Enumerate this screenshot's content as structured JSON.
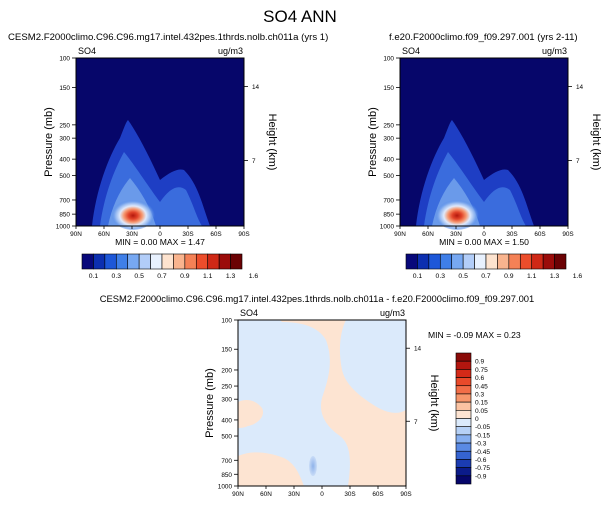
{
  "figure": {
    "title": "SO4 ANN",
    "top_left_case": "CESM2.F2000climo.C96.C96.mg17.intel.432pes.1thrds.nolb.ch011a (yrs 1)",
    "top_right_case": "f.e20.F2000climo.f09_f09.297.001 (yrs 2-11)",
    "diff_title": "CESM2.F2000climo.C96.C96.mg17.intel.432pes.1thrds.nolb.ch011a - f.e20.F2000climo.f09_f09.297.001"
  },
  "panels": {
    "left": {
      "var": "SO4",
      "units": "ug/m3",
      "stats": "MIN =  0.00  MAX =  1.47"
    },
    "right": {
      "var": "SO4",
      "units": "ug/m3",
      "stats": "MIN =  0.00  MAX =  1.50"
    },
    "diff": {
      "var": "SO4",
      "units": "ug/m3",
      "stats": "MIN = -0.09  MAX =  0.23"
    }
  },
  "axes": {
    "ylabel": "Pressure (mb)",
    "y2label": "Height (km)",
    "pressure_ticks": [
      "100",
      "150",
      "200",
      "250",
      "300",
      "400",
      "500",
      "700",
      "850",
      "1000"
    ],
    "pressure_ticks_top": [
      "100",
      "150",
      "250",
      "300",
      "400",
      "500",
      "700",
      "850",
      "1000"
    ],
    "pressure_ticks_diff": [
      "100",
      "150",
      "200",
      "250",
      "300",
      "400",
      "500",
      "700",
      "850",
      "1000"
    ],
    "height_ticks": [
      "14",
      "7"
    ],
    "lat_ticks": [
      "90N",
      "60N",
      "30N",
      "0",
      "30S",
      "60S",
      "90S"
    ]
  },
  "colorbars": {
    "top_labels": [
      "0.1",
      "0.3",
      "0.5",
      "0.7",
      "0.9",
      "1.1",
      "1.3",
      "1.6"
    ],
    "top_colors": [
      "#08087a",
      "#0c2fb0",
      "#1d57d8",
      "#3f7fe8",
      "#77a8f2",
      "#b2cdf8",
      "#e8f1fe",
      "#fde3cf",
      "#f9b48e",
      "#f48156",
      "#ec4d2b",
      "#cf2816",
      "#9b0c0a",
      "#6b0204"
    ],
    "diff_labels": [
      "0.9",
      "0.75",
      "0.6",
      "0.45",
      "0.3",
      "0.15",
      "0.05",
      "0",
      "-0.05",
      "-0.15",
      "-0.3",
      "-0.45",
      "-0.6",
      "-0.75",
      "-0.9"
    ],
    "diff_colors": [
      "#8a0a08",
      "#b3160f",
      "#d42a18",
      "#e94a2a",
      "#f26e48",
      "#f7976c",
      "#fbc3a2",
      "#fde4d2",
      "#dbeafb",
      "#b6d1f6",
      "#86aff0",
      "#5a8ae4",
      "#3563d1",
      "#1b3cb2",
      "#0b1b8a",
      "#06066a"
    ]
  },
  "chart_data": [
    {
      "type": "heatmap",
      "title": "CESM2.F2000climo.C96.C96.mg17.intel.432pes.1thrds.nolb.ch011a (yrs 1)",
      "x": [
        "90N",
        "60N",
        "30N",
        "0",
        "30S",
        "60S",
        "90S"
      ],
      "y": [
        1000,
        850,
        700,
        500,
        400,
        300,
        250,
        200,
        150,
        100
      ],
      "ylabel": "Pressure (mb)",
      "y2label": "Height (km)",
      "units": "ug/m3",
      "min": 0.0,
      "max": 1.47,
      "levels": [
        0.1,
        0.2,
        0.3,
        0.4,
        0.5,
        0.6,
        0.7,
        0.8,
        0.9,
        1.0,
        1.1,
        1.2,
        1.3,
        1.6
      ]
    },
    {
      "type": "heatmap",
      "title": "f.e20.F2000climo.f09_f09.297.001 (yrs 2-11)",
      "x": [
        "90N",
        "60N",
        "30N",
        "0",
        "30S",
        "60S",
        "90S"
      ],
      "y": [
        1000,
        850,
        700,
        500,
        400,
        300,
        250,
        200,
        150,
        100
      ],
      "ylabel": "Pressure (mb)",
      "y2label": "Height (km)",
      "units": "ug/m3",
      "min": 0.0,
      "max": 1.5,
      "levels": [
        0.1,
        0.2,
        0.3,
        0.4,
        0.5,
        0.6,
        0.7,
        0.8,
        0.9,
        1.0,
        1.1,
        1.2,
        1.3,
        1.6
      ]
    },
    {
      "type": "heatmap",
      "title": "CESM2.F2000climo.C96.C96.mg17.intel.432pes.1thrds.nolb.ch011a - f.e20.F2000climo.f09_f09.297.001",
      "x": [
        "90N",
        "60N",
        "30N",
        "0",
        "30S",
        "60S",
        "90S"
      ],
      "y": [
        1000,
        850,
        700,
        500,
        400,
        300,
        250,
        200,
        150,
        100
      ],
      "ylabel": "Pressure (mb)",
      "y2label": "Height (km)",
      "units": "ug/m3",
      "min": -0.09,
      "max": 0.23,
      "levels": [
        -0.9,
        -0.75,
        -0.6,
        -0.45,
        -0.3,
        -0.15,
        -0.05,
        0,
        0.05,
        0.15,
        0.3,
        0.45,
        0.6,
        0.75,
        0.9
      ]
    }
  ]
}
